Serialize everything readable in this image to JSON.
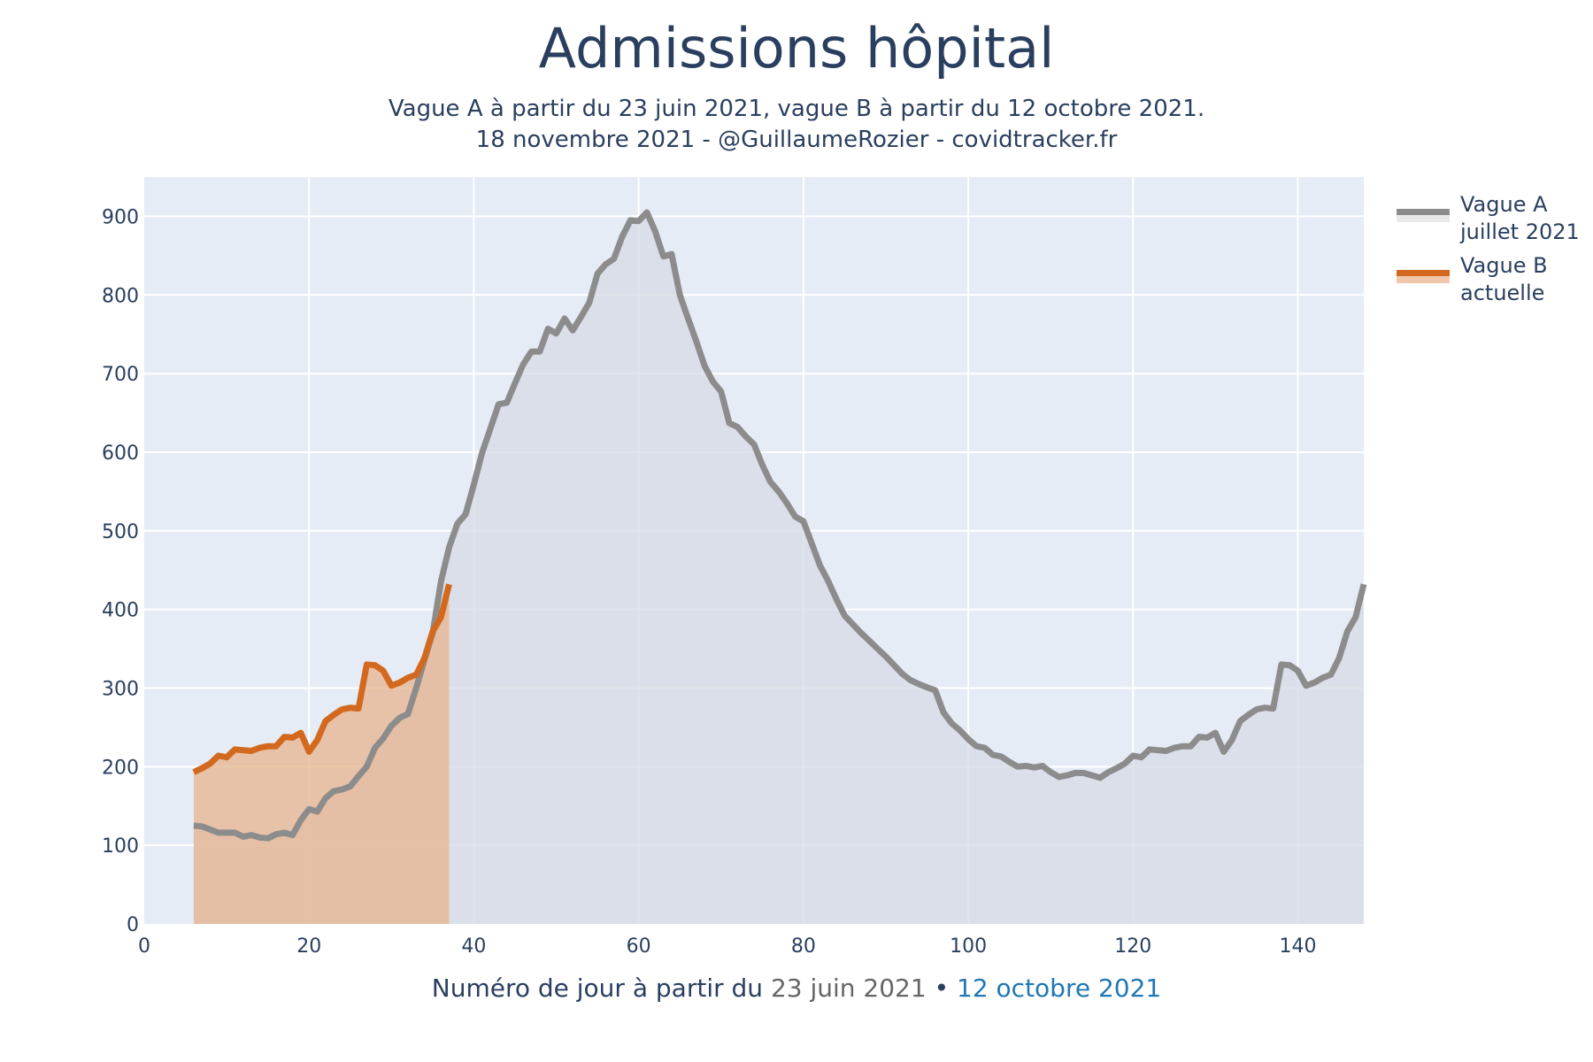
{
  "title": "Admissions hôpital",
  "subtitle_line1": "Vague A à partir du 23 juin 2021, vague B à partir du 12 octobre 2021.",
  "subtitle_line2": "18 novembre 2021 - @GuillaumeRozier - covidtracker.fr",
  "xlabel": {
    "prefix": "Numéro de jour à partir du",
    "date_a": "23 juin 2021",
    "separator": "•",
    "date_b": "12 octobre 2021"
  },
  "colors": {
    "plot_bg": "#e5ecf6",
    "grid": "#ffffff",
    "text": "#2a3f5f",
    "vague_a_line": "#8c8c8c",
    "vague_a_fill": "#d6dbe4",
    "vague_b_line": "#d2691e",
    "vague_b_fill": "#e8b48e",
    "date_a": "#666666",
    "date_b": "#1f77b4"
  },
  "chart_data": {
    "type": "area",
    "xlim": [
      0,
      148
    ],
    "ylim": [
      0,
      950
    ],
    "xticks": [
      0,
      20,
      40,
      60,
      80,
      100,
      120,
      140
    ],
    "yticks": [
      0,
      100,
      200,
      300,
      400,
      500,
      600,
      700,
      800,
      900
    ],
    "grid": true,
    "legend_position": "top-right",
    "series": [
      {
        "name": "Vague A juillet 2021",
        "legend_line1": "Vague A",
        "legend_line2": "juillet 2021",
        "color": "#8c8c8c",
        "x_start": 6,
        "values": [
          125,
          124,
          120,
          116,
          116,
          116,
          111,
          113,
          110,
          109,
          114,
          116,
          113,
          132,
          146,
          143,
          160,
          169,
          171,
          175,
          188,
          200,
          224,
          236,
          252,
          262,
          267,
          300,
          336,
          370,
          435,
          479,
          509,
          521,
          559,
          599,
          630,
          661,
          663,
          688,
          712,
          728,
          728,
          757,
          751,
          770,
          755,
          772,
          790,
          827,
          839,
          846,
          874,
          895,
          894,
          905,
          881,
          849,
          852,
          800,
          770,
          741,
          710,
          690,
          677,
          637,
          632,
          620,
          610,
          584,
          562,
          550,
          535,
          518,
          512,
          484,
          456,
          436,
          413,
          392,
          381,
          370,
          360,
          350,
          340,
          329,
          318,
          310,
          305,
          301,
          297,
          269,
          255,
          246,
          235,
          226,
          224,
          215,
          213,
          206,
          200,
          201,
          199,
          201,
          193,
          187,
          189,
          192,
          192,
          189,
          186,
          193,
          198,
          204,
          214,
          212,
          222,
          221,
          220,
          224,
          226,
          226,
          238,
          237,
          243,
          219,
          234,
          258,
          266,
          273,
          275,
          274,
          330,
          329,
          322,
          303,
          307,
          313,
          317,
          338,
          372,
          390,
          432
        ]
      },
      {
        "name": "Vague B actuelle",
        "legend_line1": "Vague B",
        "legend_line2": "actuelle",
        "color": "#d2691e",
        "x_start": 6,
        "values": [
          193,
          198,
          204,
          214,
          212,
          222,
          221,
          220,
          224,
          226,
          226,
          238,
          237,
          243,
          219,
          234,
          258,
          266,
          273,
          275,
          274,
          330,
          329,
          322,
          303,
          307,
          313,
          317,
          338,
          372,
          390,
          432
        ]
      }
    ]
  }
}
